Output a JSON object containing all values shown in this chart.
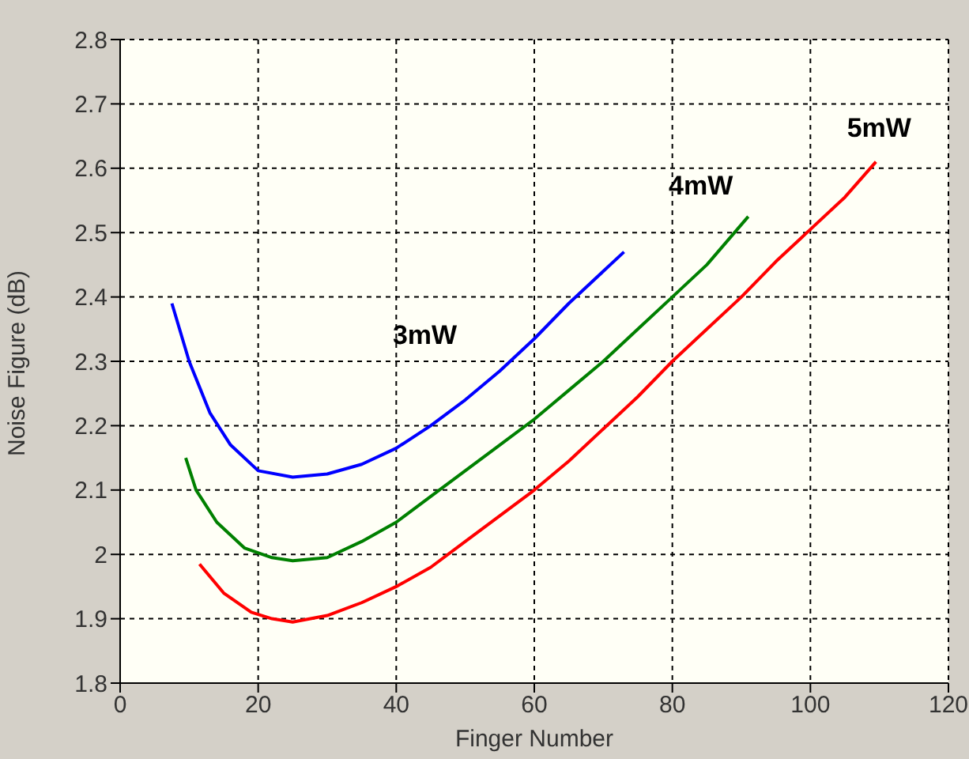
{
  "chart_data": {
    "type": "line",
    "xlabel": "Finger Number",
    "ylabel": "Noise Figure (dB)",
    "xlim": [
      0,
      120
    ],
    "xticks": [
      0,
      20,
      40,
      60,
      80,
      100,
      120
    ],
    "ylim": [
      1.8,
      2.8
    ],
    "yticks": [
      1.8,
      1.9,
      2,
      2.1,
      2.2,
      2.3,
      2.4,
      2.5,
      2.6,
      2.7,
      2.8
    ],
    "grid": true,
    "marker": "none",
    "line_style": "solid",
    "series": [
      {
        "name": "3mW",
        "color": "#0000ff",
        "x": [
          7.5,
          10,
          13,
          16,
          20,
          25,
          30,
          35,
          40,
          45,
          50,
          55,
          60,
          65,
          70,
          73
        ],
        "values": [
          2.39,
          2.3,
          2.22,
          2.17,
          2.13,
          2.12,
          2.125,
          2.14,
          2.165,
          2.2,
          2.24,
          2.285,
          2.335,
          2.39,
          2.44,
          2.47
        ]
      },
      {
        "name": "4mW",
        "color": "#008000",
        "x": [
          9.5,
          11,
          14,
          18,
          22,
          25,
          30,
          35,
          40,
          45,
          50,
          55,
          60,
          65,
          70,
          75,
          80,
          85,
          91
        ],
        "values": [
          2.15,
          2.1,
          2.05,
          2.01,
          1.995,
          1.99,
          1.995,
          2.02,
          2.05,
          2.09,
          2.13,
          2.17,
          2.21,
          2.255,
          2.3,
          2.35,
          2.4,
          2.45,
          2.525
        ]
      },
      {
        "name": "5mW",
        "color": "#ff0000",
        "x": [
          11.5,
          15,
          19,
          22,
          25,
          30,
          35,
          40,
          45,
          50,
          55,
          60,
          65,
          70,
          75,
          80,
          85,
          90,
          95,
          100,
          105,
          109.5
        ],
        "values": [
          1.985,
          1.94,
          1.91,
          1.9,
          1.895,
          1.905,
          1.925,
          1.95,
          1.98,
          2.02,
          2.06,
          2.1,
          2.145,
          2.195,
          2.245,
          2.3,
          2.35,
          2.4,
          2.455,
          2.505,
          2.555,
          2.61
        ]
      }
    ]
  }
}
